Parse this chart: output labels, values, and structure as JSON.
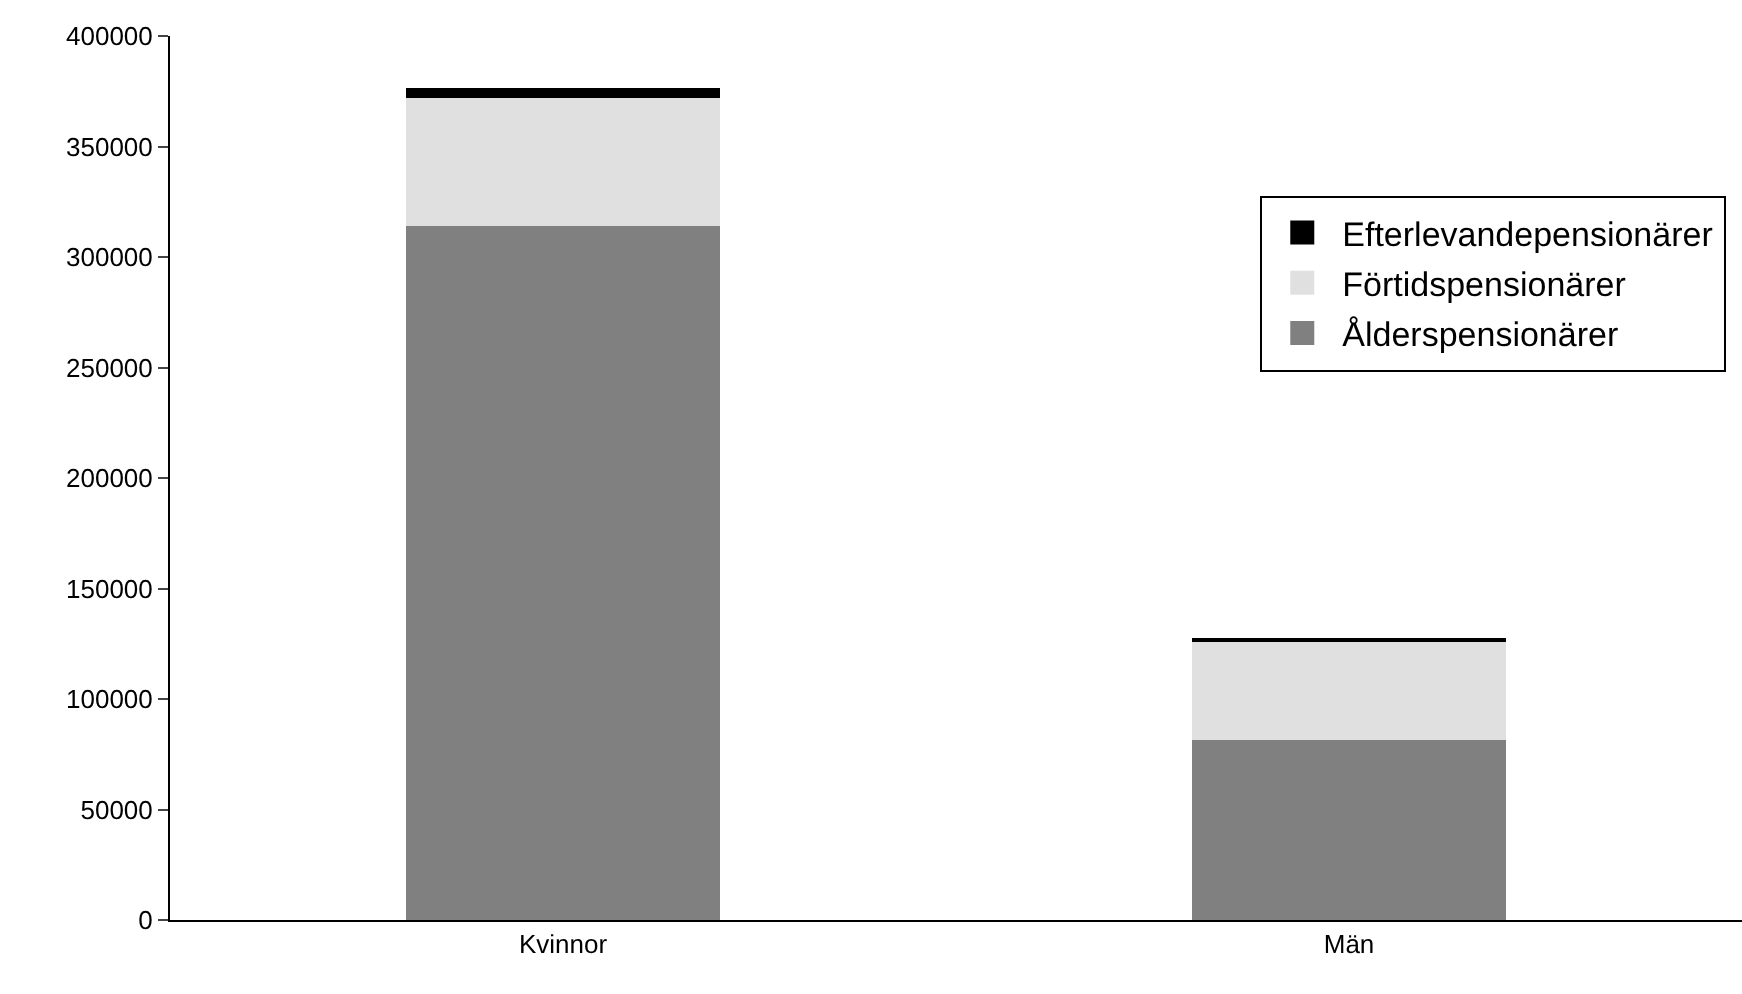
{
  "chart_data": {
    "type": "bar",
    "stacked": true,
    "categories": [
      "Kvinnor",
      "Män"
    ],
    "series": [
      {
        "name": "Ålderspensionärer",
        "color": "#808080",
        "values": [
          314000,
          81500
        ]
      },
      {
        "name": "Förtidspensionärer",
        "color": "#e0e0e0",
        "values": [
          58000,
          45000
        ]
      },
      {
        "name": "Efterlevandepensionärer",
        "color": "#000000",
        "values": [
          4500,
          1000
        ]
      }
    ],
    "ylim": [
      0,
      400000
    ],
    "yticks": [
      0,
      50000,
      100000,
      150000,
      200000,
      250000,
      300000,
      350000,
      400000
    ],
    "grid": false,
    "legend": "right"
  }
}
